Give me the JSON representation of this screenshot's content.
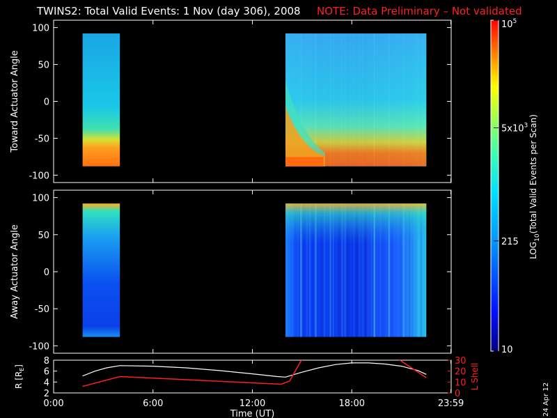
{
  "title": {
    "main": "TWINS2: Total Valid Events:  1 Nov (day 306), 2008",
    "note": "NOTE: Data Preliminary – Not validated",
    "main_color": "#ffffff",
    "note_color": "#ff2020"
  },
  "date_stamp": "24 Apr 12",
  "colorbar": {
    "label_prefix": "LOG",
    "label_sub": "10",
    "label_suffix": "(Total Valid  Events per Scan)",
    "ticks": [
      {
        "base": "10",
        "exp": "5",
        "value": 100000
      },
      {
        "base": "5x10",
        "exp": "3",
        "value": 5000
      },
      {
        "base": "215",
        "exp": "",
        "value": 215
      },
      {
        "base": "10",
        "exp": "",
        "value": 10
      }
    ],
    "range": [
      10,
      100000
    ],
    "scale": "log",
    "colormap": "rainbow (dark blue → cyan → green → yellow → red)"
  },
  "chart_data": [
    {
      "type": "heatmap",
      "panel": "toward",
      "ylabel": "Toward Actuator Angle",
      "ylim": [
        -110,
        110
      ],
      "yticks": [
        100,
        50,
        0,
        -50,
        -100
      ],
      "xlim": [
        0,
        24
      ],
      "data_blocks": [
        {
          "t_start": 1.75,
          "t_end": 4.0,
          "angle_min": -88,
          "angle_max": 92
        },
        {
          "t_start": 14.0,
          "t_end": 22.5,
          "angle_min": -88,
          "angle_max": 92
        }
      ]
    },
    {
      "type": "heatmap",
      "panel": "away",
      "ylabel": "Away Actuator Angle",
      "ylim": [
        -110,
        110
      ],
      "yticks": [
        100,
        50,
        0,
        -50,
        -100
      ],
      "xlim": [
        0,
        24
      ],
      "data_blocks": [
        {
          "t_start": 1.75,
          "t_end": 4.0,
          "angle_min": -88,
          "angle_max": 92
        },
        {
          "t_start": 14.0,
          "t_end": 22.5,
          "angle_min": -88,
          "angle_max": 92
        }
      ]
    },
    {
      "type": "line",
      "panel": "ephemeris",
      "xlabel": "Time (UT)",
      "xticks": [
        "0:00",
        "6:00",
        "12:00",
        "18:00",
        "23:59"
      ],
      "xtick_hours": [
        0,
        6,
        12,
        18,
        23.983
      ],
      "left_axis": {
        "label": "R [R",
        "label_sub": "E",
        "label_end": "]",
        "ylim": [
          2,
          8
        ],
        "yticks": [
          2,
          4,
          6,
          8
        ],
        "color": "#ffffff"
      },
      "right_axis": {
        "label": "L Shell",
        "ylim": [
          0,
          30
        ],
        "yticks": [
          0,
          10,
          20,
          30
        ],
        "color": "#ff2020"
      },
      "series": [
        {
          "axis": "left",
          "color": "#ffffff",
          "x": [
            1.75,
            2.5,
            3.2,
            4.0,
            6,
            8,
            10,
            12,
            13.5,
            14.0,
            15,
            16,
            17,
            18,
            19,
            20,
            21,
            22,
            22.5
          ],
          "y": [
            5.1,
            6.0,
            6.6,
            7.0,
            6.9,
            6.6,
            6.1,
            5.5,
            5.0,
            4.9,
            5.8,
            6.6,
            7.2,
            7.5,
            7.5,
            7.3,
            6.9,
            6.1,
            5.4
          ]
        },
        {
          "axis": "right",
          "color": "#ff2020",
          "segments": [
            {
              "x": [
                1.75,
                4.0,
                13.75,
                14.25,
                15.0
              ],
              "y": [
                6,
                15,
                8,
                11,
                31
              ]
            },
            {
              "x": [
                20.8,
                22.5
              ],
              "y": [
                31,
                14
              ]
            }
          ]
        }
      ]
    }
  ]
}
